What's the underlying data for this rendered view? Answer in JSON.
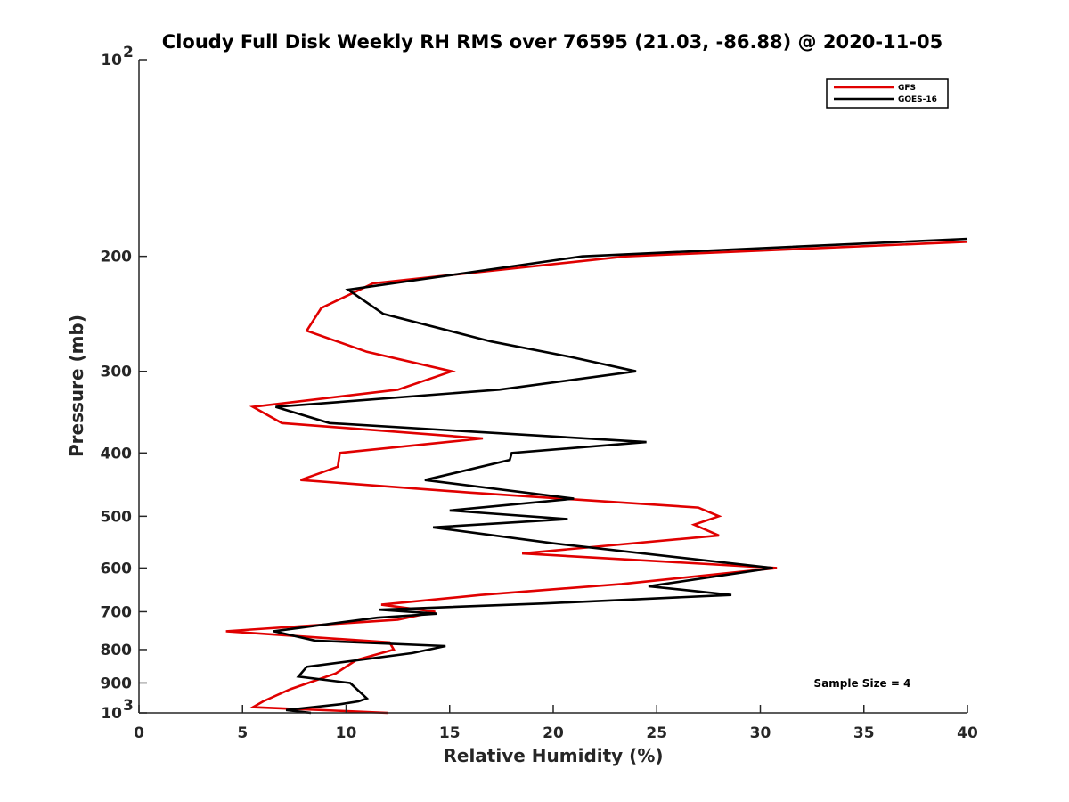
{
  "chart_data": {
    "type": "line",
    "title": "Cloudy Full Disk Weekly RH RMS over 76595 (21.03, -86.88) @ 2020-11-05",
    "xlabel": "Relative Humidity (%)",
    "ylabel": "Pressure (mb)",
    "xlim": [
      0,
      40
    ],
    "ylim": [
      100,
      1000
    ],
    "yscale": "log",
    "y_reversed": true,
    "x_ticks": [
      "0",
      "5",
      "10",
      "15",
      "20",
      "25",
      "30",
      "35",
      "40"
    ],
    "y_ticks": [
      {
        "value": 100,
        "base": "10",
        "exp": "2"
      },
      {
        "value": 200,
        "label": "200"
      },
      {
        "value": 300,
        "label": "300"
      },
      {
        "value": 400,
        "label": "400"
      },
      {
        "value": 500,
        "label": "500"
      },
      {
        "value": 600,
        "label": "600"
      },
      {
        "value": 700,
        "label": "700"
      },
      {
        "value": 800,
        "label": "800"
      },
      {
        "value": 900,
        "label": "900"
      },
      {
        "value": 1000,
        "base": "10",
        "exp": "3"
      }
    ],
    "legend_position": "top-right",
    "annotation": "Sample Size = 4",
    "series": [
      {
        "name": "GFS",
        "color": "#e00000",
        "points": [
          [
            40.0,
            190
          ],
          [
            23.5,
            200
          ],
          [
            11.3,
            220
          ],
          [
            8.8,
            240
          ],
          [
            8.1,
            260
          ],
          [
            11.0,
            280
          ],
          [
            15.1,
            300
          ],
          [
            12.5,
            320
          ],
          [
            5.5,
            340
          ],
          [
            6.9,
            360
          ],
          [
            16.6,
            380
          ],
          [
            9.7,
            400
          ],
          [
            9.6,
            420
          ],
          [
            7.8,
            440
          ],
          [
            16.0,
            460
          ],
          [
            27.0,
            485
          ],
          [
            28.0,
            500
          ],
          [
            26.8,
            515
          ],
          [
            28.0,
            535
          ],
          [
            18.5,
            570
          ],
          [
            30.8,
            600
          ],
          [
            23.3,
            635
          ],
          [
            16.5,
            660
          ],
          [
            11.7,
            683
          ],
          [
            14.3,
            700
          ],
          [
            12.5,
            720
          ],
          [
            4.2,
            750
          ],
          [
            12.1,
            780
          ],
          [
            12.3,
            800
          ],
          [
            10.5,
            830
          ],
          [
            9.5,
            870
          ],
          [
            7.3,
            920
          ],
          [
            6.0,
            960
          ],
          [
            5.5,
            980
          ],
          [
            12.0,
            1000
          ]
        ]
      },
      {
        "name": "GOES-16",
        "color": "#000000",
        "points": [
          [
            40.0,
            188
          ],
          [
            21.4,
            200
          ],
          [
            10.1,
            225
          ],
          [
            11.8,
            245
          ],
          [
            17.0,
            270
          ],
          [
            20.8,
            285
          ],
          [
            24.0,
            300
          ],
          [
            17.4,
            320
          ],
          [
            6.6,
            340
          ],
          [
            9.2,
            360
          ],
          [
            24.5,
            385
          ],
          [
            18.0,
            400
          ],
          [
            17.9,
            410
          ],
          [
            13.8,
            440
          ],
          [
            21.0,
            470
          ],
          [
            15.0,
            490
          ],
          [
            20.7,
            505
          ],
          [
            14.2,
            520
          ],
          [
            20.0,
            550
          ],
          [
            30.6,
            600
          ],
          [
            24.6,
            640
          ],
          [
            28.6,
            660
          ],
          [
            19.6,
            680
          ],
          [
            11.6,
            695
          ],
          [
            14.4,
            705
          ],
          [
            11.5,
            715
          ],
          [
            6.5,
            750
          ],
          [
            8.5,
            775
          ],
          [
            14.8,
            790
          ],
          [
            13.2,
            810
          ],
          [
            8.1,
            850
          ],
          [
            7.7,
            880
          ],
          [
            10.2,
            900
          ],
          [
            11.0,
            950
          ],
          [
            10.6,
            960
          ],
          [
            9.7,
            970
          ],
          [
            7.1,
            990
          ],
          [
            8.3,
            1000
          ]
        ]
      }
    ]
  }
}
